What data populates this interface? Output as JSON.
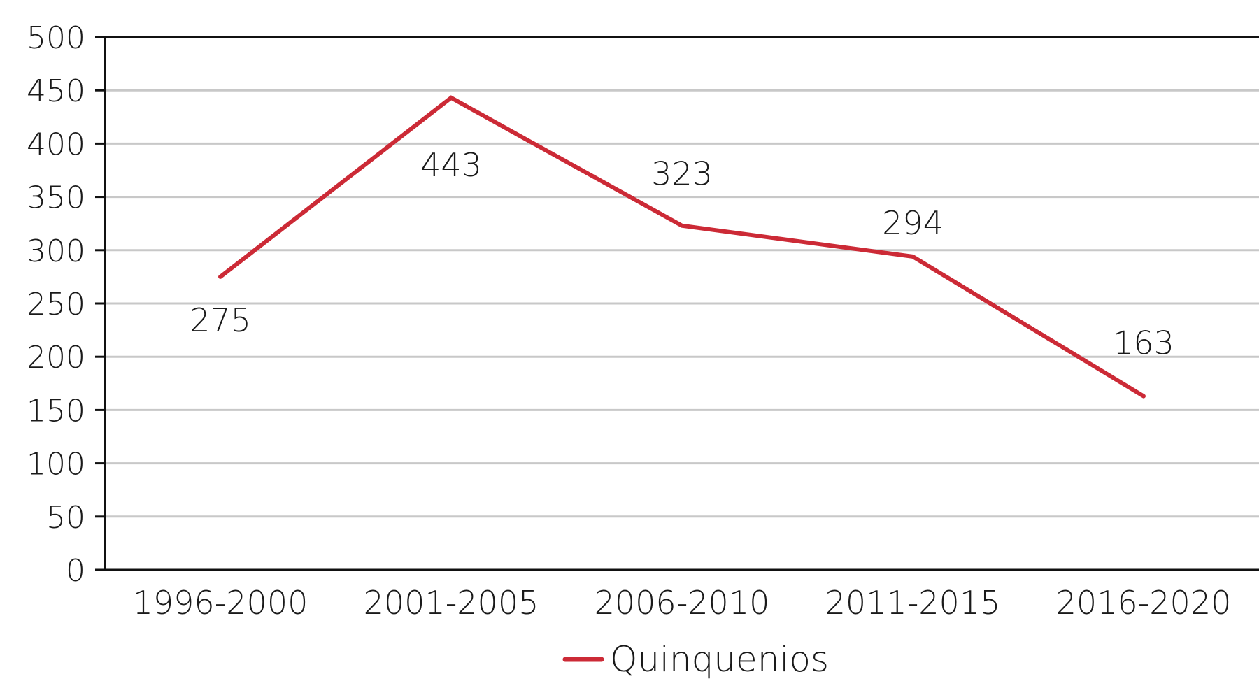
{
  "chart_data": {
    "type": "line",
    "title": "",
    "xlabel": "",
    "ylabel": "",
    "categories": [
      "1996-2000",
      "2001-2005",
      "2006-2010",
      "2011-2015",
      "2016-2020"
    ],
    "series": [
      {
        "name": "Quinquenios",
        "values": [
          275,
          443,
          323,
          294,
          163
        ],
        "color": "#cc2a36"
      }
    ],
    "data_labels": [
      "275",
      "443",
      "323",
      "294",
      "163"
    ],
    "ylim": [
      0,
      500
    ],
    "yticks": [
      0,
      50,
      100,
      150,
      200,
      250,
      300,
      350,
      400,
      450,
      500
    ],
    "ytick_labels": [
      "0",
      "50",
      "100",
      "150",
      "200",
      "250",
      "300",
      "350",
      "400",
      "450",
      "500"
    ],
    "grid": true,
    "gridline_color": "#c8c8c8",
    "axis_color": "#111111",
    "legend": {
      "position": "bottom-center",
      "label": "Quinquenios"
    }
  }
}
